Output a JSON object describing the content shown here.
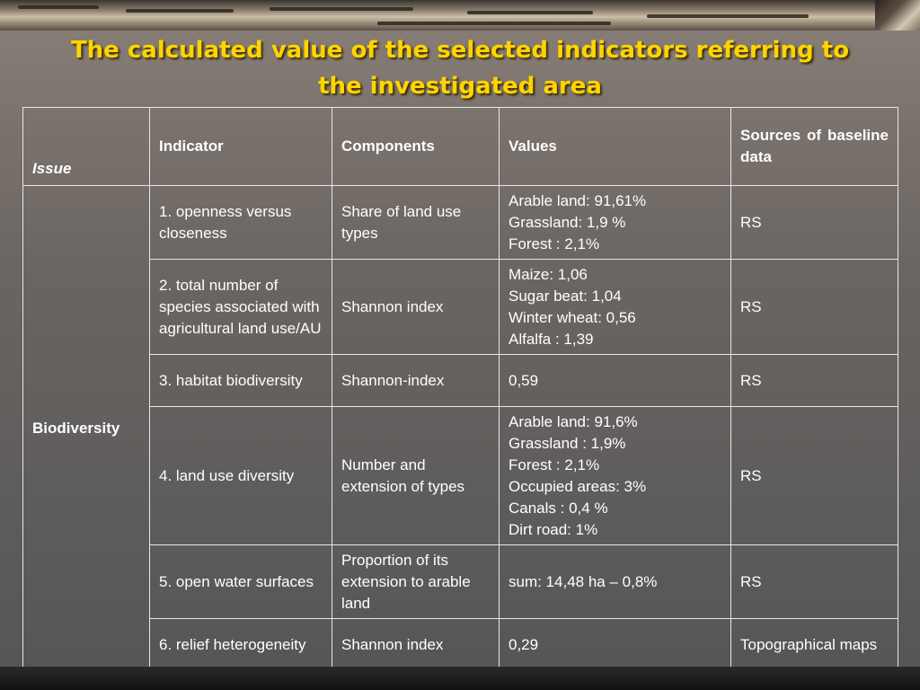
{
  "title": "The calculated value of the selected indicators referring to the investigated area",
  "table": {
    "headers": {
      "issue": "Issue",
      "indicator": "Indicator",
      "components": "Components",
      "values": "Values",
      "sources": "Sources of baseline data"
    },
    "issue_value": "Biodiversity",
    "rows": [
      {
        "indicator": "1. openness versus closeness",
        "components": "Share of land use types",
        "values": [
          "Arable land: 91,61%",
          "Grassland: 1,9 %",
          "Forest : 2,1%"
        ],
        "sources": "RS"
      },
      {
        "indicator": "2. total number of species associated with agricultural land use/AU",
        "components": "Shannon index",
        "values": [
          "Maize: 1,06",
          "Sugar beat: 1,04",
          "Winter wheat: 0,56",
          "Alfalfa : 1,39"
        ],
        "sources": "RS"
      },
      {
        "indicator": "3. habitat biodiversity",
        "components": "Shannon-index",
        "values": [
          "0,59"
        ],
        "sources": "RS"
      },
      {
        "indicator": "4. land use diversity",
        "components": "Number and extension of types",
        "values": [
          "Arable land: 91,6%",
          "Grassland : 1,9%",
          "Forest : 2,1%",
          "Occupied areas: 3%",
          "Canals : 0,4 %",
          "Dirt road: 1%"
        ],
        "sources": "RS"
      },
      {
        "indicator": "5. open water surfaces",
        "components": "Proportion of its extension to arable land",
        "values": [
          "sum: 14,48 ha – 0,8%"
        ],
        "sources": "RS"
      },
      {
        "indicator": "6. relief heterogeneity",
        "components": "Shannon index",
        "values": [
          "0,29"
        ],
        "sources": "Topographical maps"
      }
    ]
  }
}
